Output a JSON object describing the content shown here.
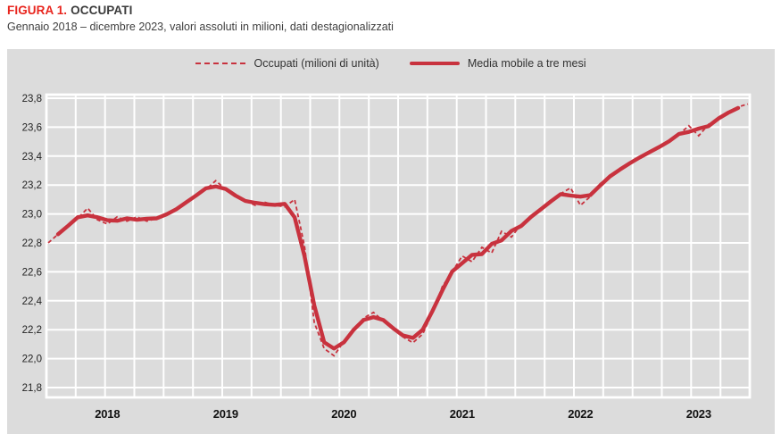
{
  "header": {
    "figure_label": "FIGURA 1.",
    "figure_title": "OCCUPATI",
    "subtitle": "Gennaio 2018 – dicembre 2023, valori assoluti in milioni, dati destagionalizzati"
  },
  "colors": {
    "figure_label_red": "#e8251e",
    "series_red": "#c8323e",
    "panel_bg": "#dcdcdc",
    "gridline": "#ffffff",
    "text_dark": "#3c3c3c"
  },
  "legend": {
    "dashed_label": "Occupati (milioni di unità)",
    "solid_label": "Media mobile a tre mesi"
  },
  "chart_data": {
    "type": "line",
    "title": "FIGURA 1. OCCUPATI",
    "subtitle": "Gennaio 2018 – dicembre 2023, valori assoluti in milioni, dati destagionalizzati",
    "x_frequency": "monthly",
    "x_start": "2018-01",
    "x_end": "2023-12",
    "xticks": [
      "2018",
      "2019",
      "2020",
      "2021",
      "2022",
      "2023"
    ],
    "yticks": [
      "23,8",
      "23,6",
      "23,4",
      "23,2",
      "23,0",
      "22,8",
      "22,6",
      "22,4",
      "22,2",
      "22,0",
      "21,8"
    ],
    "ylim": [
      21.8,
      23.8
    ],
    "ytick_step": 0.2,
    "grid": true,
    "legend_position": "top",
    "series": [
      {
        "name": "Occupati (milioni di unità)",
        "style": "dashed",
        "start_index": 0,
        "values": [
          22.8,
          22.86,
          22.92,
          22.97,
          23.04,
          22.96,
          22.93,
          22.98,
          22.95,
          22.98,
          22.95,
          22.97,
          22.99,
          23.03,
          23.08,
          23.13,
          23.17,
          23.23,
          23.17,
          23.12,
          23.09,
          23.06,
          23.08,
          23.06,
          23.05,
          23.1,
          22.78,
          22.25,
          22.07,
          22.02,
          22.12,
          22.2,
          22.28,
          22.32,
          22.26,
          22.22,
          22.15,
          22.11,
          22.17,
          22.32,
          22.5,
          22.6,
          22.71,
          22.67,
          22.77,
          22.73,
          22.88,
          22.84,
          22.93,
          22.98,
          23.03,
          23.09,
          23.14,
          23.18,
          23.06,
          23.12,
          23.21,
          23.26,
          23.31,
          23.35,
          23.39,
          23.43,
          23.46,
          23.5,
          23.55,
          23.61,
          23.54,
          23.62,
          23.66,
          23.7,
          23.74,
          23.76
        ]
      },
      {
        "name": "Media mobile a tre mesi",
        "style": "solid",
        "note": "centered 3-month moving average, Feb 2018 – Nov 2023",
        "start_index": 1,
        "values": [
          22.86,
          22.917,
          22.977,
          22.99,
          22.977,
          22.957,
          22.953,
          22.97,
          22.96,
          22.967,
          22.97,
          22.997,
          23.033,
          23.08,
          23.127,
          23.177,
          23.19,
          23.173,
          23.127,
          23.09,
          23.077,
          23.067,
          23.063,
          23.07,
          22.977,
          22.71,
          22.367,
          22.113,
          22.07,
          22.113,
          22.2,
          22.267,
          22.287,
          22.267,
          22.21,
          22.16,
          22.143,
          22.2,
          22.33,
          22.473,
          22.603,
          22.66,
          22.717,
          22.723,
          22.793,
          22.817,
          22.883,
          22.917,
          22.98,
          23.033,
          23.087,
          23.137,
          23.127,
          23.12,
          23.13,
          23.197,
          23.26,
          23.307,
          23.35,
          23.39,
          23.427,
          23.463,
          23.503,
          23.553,
          23.567,
          23.59,
          23.607,
          23.66,
          23.7,
          23.733
        ]
      }
    ]
  }
}
